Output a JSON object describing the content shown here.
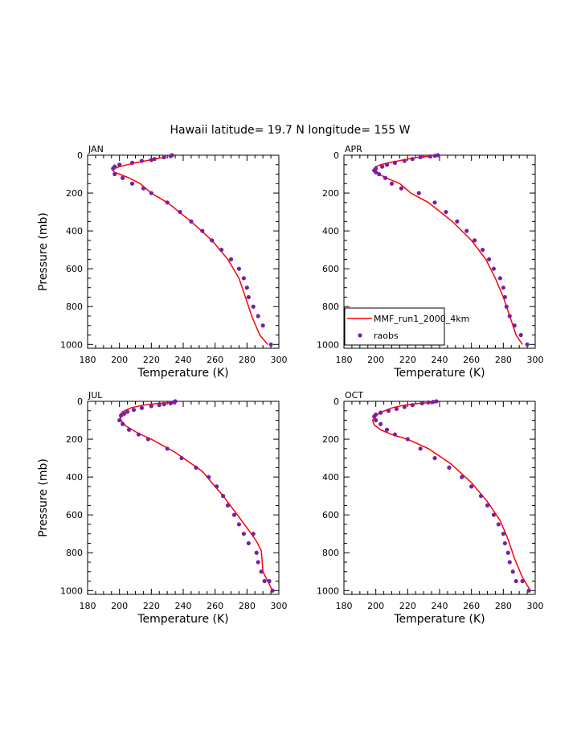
{
  "figure": {
    "title": "Hawaii  latitude= 19.7 N longitude= 155 W"
  },
  "legend": {
    "entries": [
      {
        "label": "MMF_run1_2000_4km",
        "color": "#ff0000",
        "kind": "line"
      },
      {
        "label": "raobs",
        "color": "#7b1fa2",
        "kind": "marker"
      }
    ]
  },
  "chart_data": [
    {
      "type": "line",
      "panel": "JAN",
      "xlabel": "Temperature (K)",
      "ylabel": "Pressure (mb)",
      "xlim": [
        180,
        300
      ],
      "ylim": [
        0,
        1020
      ],
      "y_inverted": true,
      "xticks": [
        180,
        200,
        220,
        240,
        260,
        280,
        300
      ],
      "yticks": [
        0,
        200,
        400,
        600,
        800,
        1000
      ],
      "series": [
        {
          "name": "MMF_run1_2000_4km",
          "style": "line",
          "color": "#ff0000",
          "x": [
            229,
            222,
            216,
            210,
            205,
            200,
            197,
            196,
            197,
            200,
            206,
            213,
            220,
            230,
            245,
            258,
            268,
            275,
            279,
            283,
            288,
            293
          ],
          "y": [
            10,
            20,
            30,
            40,
            50,
            60,
            70,
            80,
            90,
            100,
            120,
            150,
            200,
            250,
            350,
            450,
            550,
            650,
            750,
            850,
            950,
            1000
          ]
        },
        {
          "name": "raobs",
          "style": "marker",
          "color": "#7b1fa2",
          "x": [
            233,
            232,
            228,
            222,
            220,
            214,
            208,
            200,
            197,
            196,
            197,
            202,
            208,
            215,
            220,
            230,
            238,
            245,
            252,
            258,
            264,
            270,
            275,
            278,
            280,
            281,
            284,
            287,
            290,
            295
          ],
          "y": [
            0,
            5,
            10,
            20,
            25,
            30,
            40,
            50,
            60,
            70,
            100,
            120,
            150,
            175,
            200,
            250,
            300,
            350,
            400,
            450,
            500,
            550,
            600,
            650,
            700,
            750,
            800,
            850,
            900,
            1000
          ]
        }
      ]
    },
    {
      "type": "line",
      "panel": "APR",
      "xlabel": "Temperature (K)",
      "ylabel": "",
      "xlim": [
        180,
        300
      ],
      "ylim": [
        0,
        1020
      ],
      "y_inverted": true,
      "xticks": [
        180,
        200,
        220,
        240,
        260,
        280,
        300
      ],
      "yticks": [
        0,
        200,
        400,
        600,
        800,
        1000
      ],
      "series": [
        {
          "name": "MMF_run1_2000_4km",
          "style": "line",
          "color": "#ff0000",
          "x": [
            234,
            227,
            220,
            214,
            208,
            203,
            200,
            199,
            200,
            203,
            208,
            215,
            222,
            233,
            248,
            260,
            269,
            275,
            280,
            284,
            288,
            292
          ],
          "y": [
            5,
            10,
            20,
            30,
            40,
            50,
            60,
            75,
            90,
            105,
            125,
            150,
            200,
            250,
            350,
            450,
            550,
            650,
            750,
            850,
            950,
            1000
          ]
        },
        {
          "name": "raobs",
          "style": "marker",
          "color": "#7b1fa2",
          "x": [
            239,
            237,
            234,
            228,
            223,
            218,
            212,
            207,
            204,
            200,
            199,
            200,
            202,
            206,
            210,
            216,
            227,
            237,
            244,
            251,
            257,
            262,
            267,
            271,
            274,
            278,
            280,
            281,
            282,
            284,
            287,
            291,
            295
          ],
          "y": [
            0,
            3,
            6,
            10,
            20,
            30,
            40,
            50,
            60,
            70,
            80,
            90,
            100,
            120,
            150,
            175,
            200,
            250,
            300,
            350,
            400,
            450,
            500,
            550,
            600,
            650,
            700,
            750,
            800,
            850,
            900,
            950,
            1000
          ]
        }
      ]
    },
    {
      "type": "line",
      "panel": "JUL",
      "xlabel": "Temperature (K)",
      "ylabel": "Pressure (mb)",
      "xlim": [
        180,
        300
      ],
      "ylim": [
        0,
        1020
      ],
      "y_inverted": true,
      "xticks": [
        180,
        200,
        220,
        240,
        260,
        280,
        300
      ],
      "yticks": [
        0,
        200,
        400,
        600,
        800,
        1000
      ],
      "series": [
        {
          "name": "MMF_run1_2000_4km",
          "style": "line",
          "color": "#ff0000",
          "x": [
            234,
            225,
            215,
            207,
            202,
            200,
            201,
            204,
            212,
            220,
            235,
            252,
            265,
            274,
            281,
            286,
            289,
            290,
            293,
            296
          ],
          "y": [
            5,
            10,
            20,
            35,
            55,
            75,
            100,
            130,
            170,
            200,
            270,
            370,
            500,
            600,
            680,
            740,
            790,
            900,
            950,
            1000
          ]
        },
        {
          "name": "raobs",
          "style": "marker",
          "color": "#7b1fa2",
          "x": [
            235,
            234,
            232,
            228,
            225,
            220,
            214,
            209,
            205,
            203,
            201,
            200,
            202,
            206,
            212,
            218,
            230,
            239,
            248,
            256,
            261,
            265,
            268,
            272,
            275,
            278,
            281,
            284,
            286,
            287,
            289,
            291,
            294,
            296
          ],
          "y": [
            0,
            5,
            10,
            15,
            20,
            25,
            35,
            45,
            55,
            65,
            75,
            100,
            120,
            150,
            175,
            200,
            250,
            300,
            350,
            400,
            450,
            500,
            550,
            600,
            650,
            700,
            750,
            700,
            800,
            850,
            900,
            950,
            950,
            1000
          ]
        }
      ]
    },
    {
      "type": "line",
      "panel": "OCT",
      "xlabel": "Temperature (K)",
      "ylabel": "",
      "xlim": [
        180,
        300
      ],
      "ylim": [
        0,
        1020
      ],
      "y_inverted": true,
      "xticks": [
        180,
        200,
        220,
        240,
        260,
        280,
        300
      ],
      "yticks": [
        0,
        200,
        400,
        600,
        800,
        1000
      ],
      "series": [
        {
          "name": "MMF_run1_2000_4km",
          "style": "line",
          "color": "#ff0000",
          "x": [
            237,
            228,
            218,
            210,
            204,
            200,
            198,
            199,
            203,
            210,
            220,
            233,
            247,
            260,
            270,
            278,
            283,
            287,
            292,
            297
          ],
          "y": [
            5,
            10,
            20,
            35,
            55,
            75,
            100,
            125,
            150,
            175,
            200,
            250,
            330,
            430,
            530,
            630,
            730,
            830,
            930,
            1000
          ]
        },
        {
          "name": "raobs",
          "style": "marker",
          "color": "#7b1fa2",
          "x": [
            238,
            236,
            233,
            229,
            223,
            218,
            213,
            208,
            203,
            200,
            199,
            200,
            203,
            207,
            212,
            220,
            228,
            237,
            246,
            254,
            260,
            266,
            270,
            274,
            277,
            280,
            281,
            283,
            284,
            286,
            288,
            292,
            296
          ],
          "y": [
            0,
            3,
            6,
            10,
            20,
            30,
            40,
            50,
            60,
            70,
            80,
            100,
            120,
            150,
            175,
            200,
            250,
            300,
            350,
            400,
            450,
            500,
            550,
            600,
            650,
            700,
            750,
            800,
            850,
            900,
            950,
            950,
            1000
          ]
        }
      ]
    }
  ]
}
